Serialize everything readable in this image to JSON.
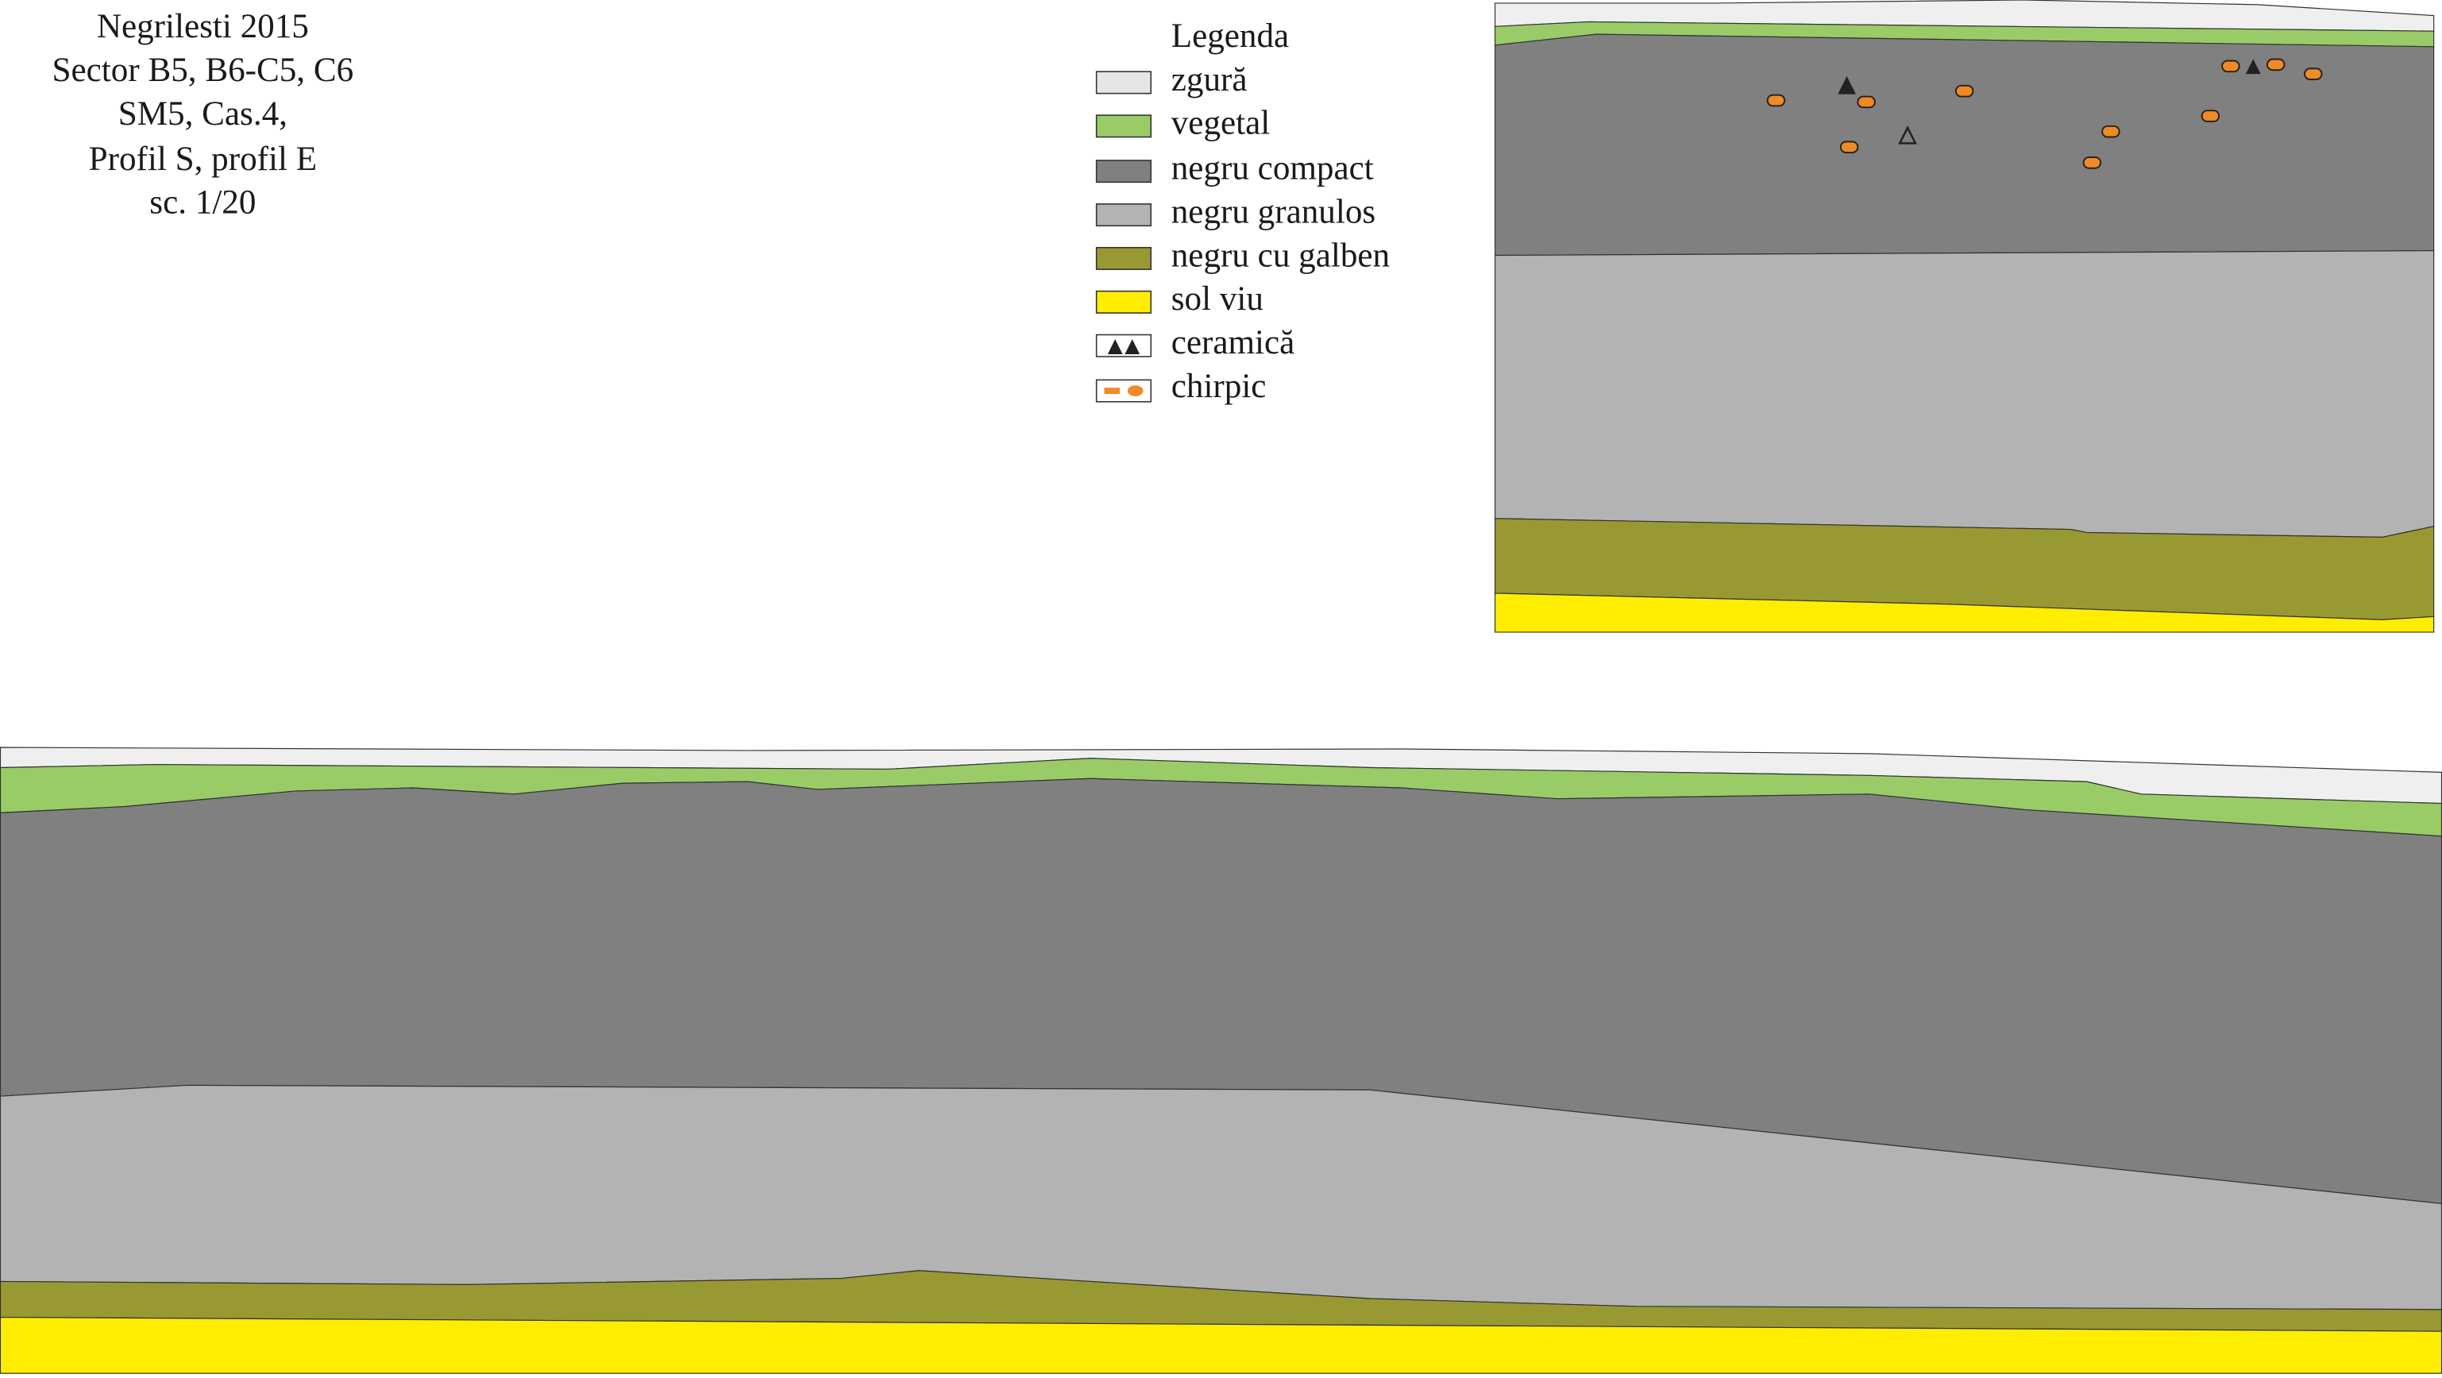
{
  "title": {
    "lines": [
      "Negrilesti 2015",
      "Sector B5, B6-C5, C6",
      "SM5, Cas.4,",
      "Profil S, profil E",
      "sc. 1/20"
    ]
  },
  "legend": {
    "title": "Legenda",
    "items": [
      "zgură",
      "vegetal",
      "negru compact",
      "negru granulos",
      "negru cu galben",
      "sol viu",
      "ceramică",
      "chirpic"
    ]
  }
}
